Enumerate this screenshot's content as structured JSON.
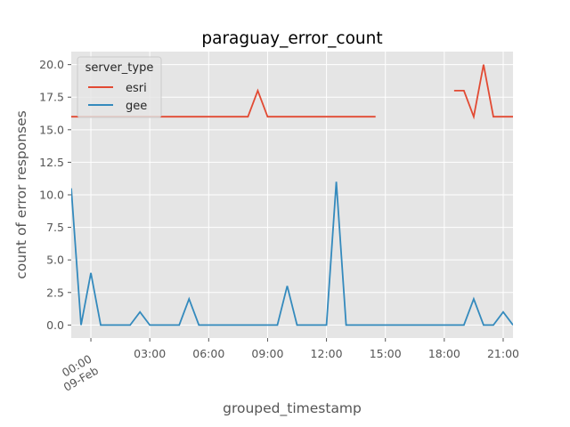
{
  "chart_data": {
    "type": "line",
    "title": "paraguay_error_count",
    "xlabel": "grouped_timestamp",
    "ylabel": "count of error responses",
    "x_unit": "hours from 09-Feb 00:00",
    "xlim": [
      -1,
      21.5
    ],
    "ylim": [
      -1.0,
      21.0
    ],
    "grid": true,
    "legend": {
      "title": "server_type",
      "position": "top-left"
    },
    "x_ticks": [
      {
        "value": 0,
        "label": "00:00\n09-Feb"
      },
      {
        "value": 3,
        "label": "03:00"
      },
      {
        "value": 6,
        "label": "06:00"
      },
      {
        "value": 9,
        "label": "09:00"
      },
      {
        "value": 12,
        "label": "12:00"
      },
      {
        "value": 15,
        "label": "15:00"
      },
      {
        "value": 18,
        "label": "18:00"
      },
      {
        "value": 21,
        "label": "21:00"
      }
    ],
    "y_ticks": [
      {
        "value": 0,
        "label": "0.0"
      },
      {
        "value": 2.5,
        "label": "2.5"
      },
      {
        "value": 5,
        "label": "5.0"
      },
      {
        "value": 7.5,
        "label": "7.5"
      },
      {
        "value": 10,
        "label": "10.0"
      },
      {
        "value": 12.5,
        "label": "12.5"
      },
      {
        "value": 15,
        "label": "15.0"
      },
      {
        "value": 17.5,
        "label": "17.5"
      },
      {
        "value": 20,
        "label": "20.0"
      }
    ],
    "series": [
      {
        "name": "esri",
        "color": "#E24A33",
        "segments": [
          [
            [
              -1,
              16
            ],
            [
              -0.5,
              16
            ],
            [
              0,
              16
            ],
            [
              0.5,
              16
            ],
            [
              1,
              16
            ],
            [
              1.5,
              16
            ],
            [
              2,
              16
            ],
            [
              2.5,
              16
            ],
            [
              3,
              16
            ],
            [
              3.5,
              16
            ],
            [
              4,
              16
            ],
            [
              4.5,
              16
            ],
            [
              5,
              16
            ],
            [
              5.5,
              16
            ],
            [
              6,
              16
            ],
            [
              6.5,
              16
            ],
            [
              7,
              16
            ],
            [
              7.5,
              16
            ],
            [
              8,
              16
            ],
            [
              8.5,
              18
            ],
            [
              9,
              16
            ],
            [
              9.5,
              16
            ],
            [
              10,
              16
            ],
            [
              10.5,
              16
            ],
            [
              11,
              16
            ],
            [
              11.5,
              16
            ],
            [
              12,
              16
            ],
            [
              12.5,
              16
            ],
            [
              13,
              16
            ],
            [
              13.5,
              16
            ],
            [
              14,
              16
            ],
            [
              14.5,
              16
            ]
          ],
          [
            [
              18.5,
              18
            ],
            [
              19,
              18
            ],
            [
              19.5,
              16
            ],
            [
              20,
              20
            ],
            [
              20.5,
              16
            ],
            [
              21,
              16
            ],
            [
              21.5,
              16
            ]
          ]
        ]
      },
      {
        "name": "gee",
        "color": "#348ABD",
        "segments": [
          [
            [
              -1,
              10.5
            ],
            [
              -0.5,
              0
            ],
            [
              0,
              4
            ],
            [
              0.5,
              0
            ],
            [
              1,
              0
            ],
            [
              1.5,
              0
            ],
            [
              2,
              0
            ],
            [
              2.5,
              1
            ],
            [
              3,
              0
            ],
            [
              3.5,
              0
            ],
            [
              4,
              0
            ],
            [
              4.5,
              0
            ],
            [
              5,
              2
            ],
            [
              5.5,
              0
            ],
            [
              6,
              0
            ],
            [
              6.5,
              0
            ],
            [
              7,
              0
            ],
            [
              7.5,
              0
            ],
            [
              8,
              0
            ],
            [
              8.5,
              0
            ],
            [
              9,
              0
            ],
            [
              9.5,
              0
            ],
            [
              10,
              3
            ],
            [
              10.5,
              0
            ],
            [
              11,
              0
            ],
            [
              11.5,
              0
            ],
            [
              12,
              0
            ],
            [
              12.5,
              11
            ],
            [
              13,
              0
            ],
            [
              13.5,
              0
            ],
            [
              14,
              0
            ],
            [
              14.5,
              0
            ],
            [
              15,
              0
            ],
            [
              15.5,
              0
            ],
            [
              16,
              0
            ],
            [
              16.5,
              0
            ],
            [
              17,
              0
            ],
            [
              17.5,
              0
            ],
            [
              18,
              0
            ],
            [
              18.5,
              0
            ],
            [
              19,
              0
            ],
            [
              19.5,
              2
            ],
            [
              20,
              0
            ],
            [
              20.5,
              0
            ],
            [
              21,
              1
            ],
            [
              21.5,
              0
            ]
          ]
        ]
      }
    ]
  }
}
